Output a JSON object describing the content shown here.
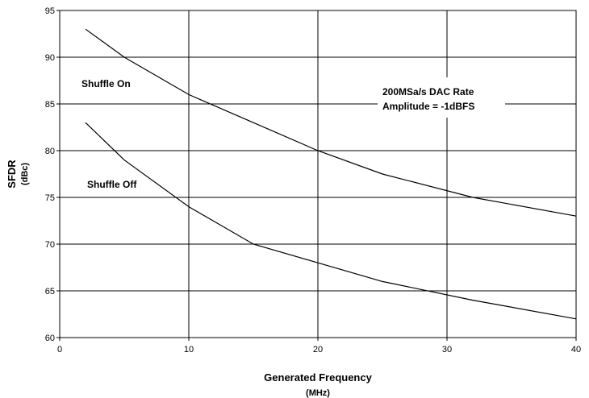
{
  "chart_data": {
    "type": "line",
    "xlabel": "Generated Frequency",
    "xlabel_unit": "(MHz)",
    "ylabel": "SFDR",
    "ylabel_unit": "(dBc)",
    "xlim": [
      0,
      40
    ],
    "ylim": [
      60,
      95
    ],
    "x_ticks": [
      0,
      10,
      20,
      30,
      40
    ],
    "y_ticks": [
      60,
      65,
      70,
      75,
      80,
      85,
      90,
      95
    ],
    "grid": true,
    "annotation_lines": [
      "200MSa/s DAC Rate",
      "Amplitude = -1dBFS"
    ],
    "series": [
      {
        "name": "Shuffle On",
        "x": [
          2,
          5,
          10,
          15,
          20,
          25,
          32,
          40
        ],
        "y": [
          93,
          90,
          86,
          83,
          80,
          77.5,
          75,
          73
        ]
      },
      {
        "name": "Shuffle Off",
        "x": [
          2,
          5,
          10,
          15,
          20,
          25,
          32,
          40
        ],
        "y": [
          83,
          79,
          74,
          70,
          68,
          66,
          64,
          62
        ]
      }
    ]
  }
}
